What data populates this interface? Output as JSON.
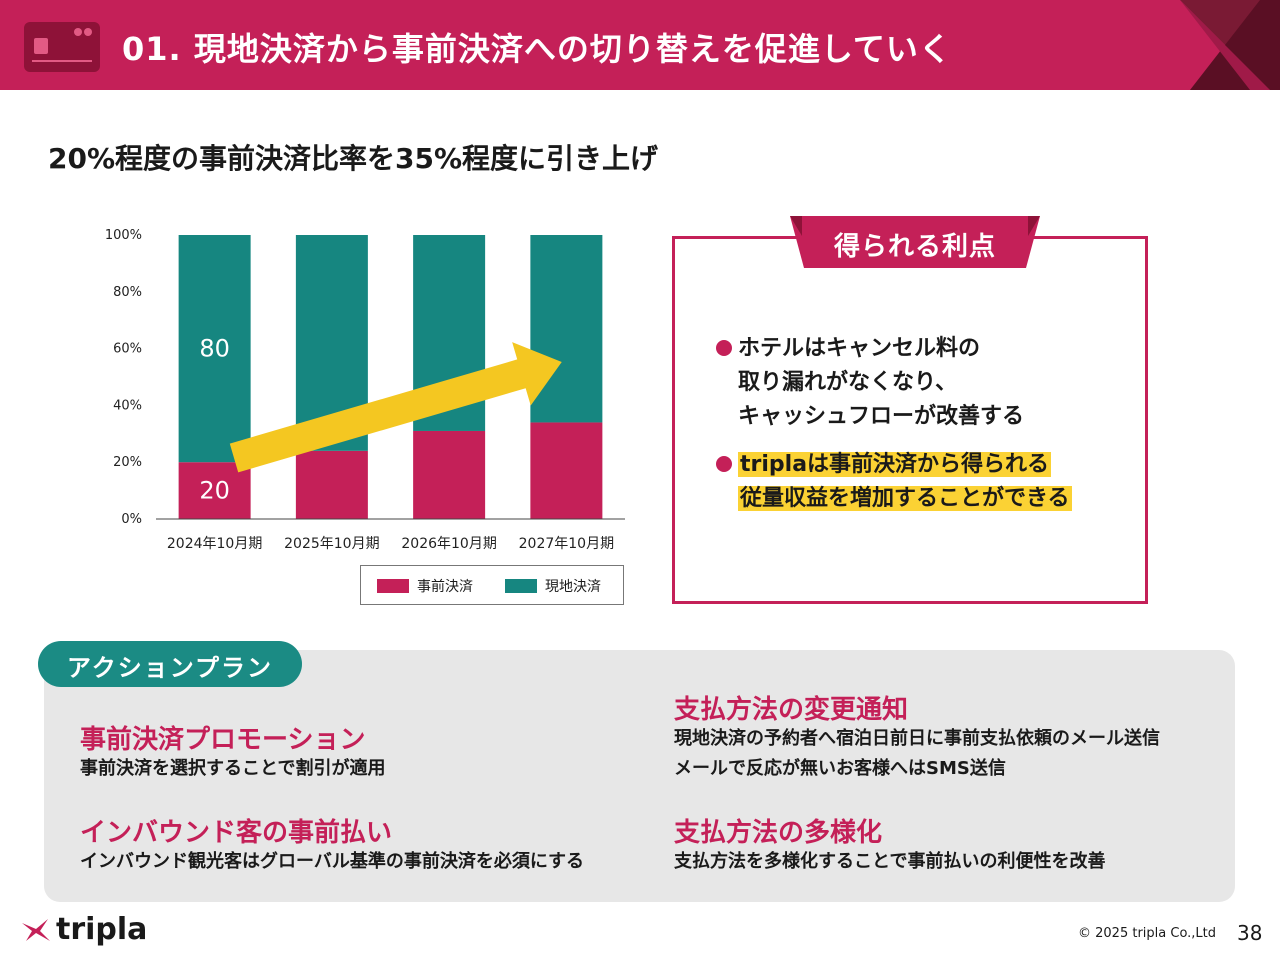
{
  "header": {
    "title": "01. 現地決済から事前決済への切り替えを促進していく",
    "color": "#c42058"
  },
  "subtitle": "20%程度の事前決済比率を35%程度に引き上げ",
  "chart_data": {
    "type": "bar",
    "stacked": true,
    "categories": [
      "2024年10月期",
      "2025年10月期",
      "2026年10月期",
      "2027年10月期"
    ],
    "series": [
      {
        "name": "事前決済",
        "color": "#c42058",
        "values": [
          20,
          24,
          31,
          34
        ]
      },
      {
        "name": "現地決済",
        "color": "#168680",
        "values": [
          80,
          76,
          69,
          66
        ]
      }
    ],
    "data_labels": [
      "80",
      "20"
    ],
    "ylim": [
      0,
      100
    ],
    "yticks": [
      "0%",
      "20%",
      "40%",
      "60%",
      "80%",
      "100%"
    ],
    "legend": "bottom",
    "arrow_color": "#f4c721"
  },
  "benefits": {
    "label": "得られる利点",
    "items": [
      {
        "lines": [
          "ホテルはキャンセル料の",
          "取り漏れがなくなり、",
          "キャッシュフローが改善する"
        ]
      },
      {
        "lines": [
          "triplaは事前決済から得られる",
          "従量収益を増加することができる"
        ],
        "highlight": true
      }
    ]
  },
  "action_plan": {
    "label": "アクションプラン",
    "items": [
      {
        "title": "事前決済プロモーション",
        "desc": [
          "事前決済を選択することで割引が適用"
        ]
      },
      {
        "title": "インバウンド客の事前払い",
        "desc": [
          "インバウンド観光客はグローバル基準の事前決済を必須にする"
        ]
      },
      {
        "title": "支払方法の変更通知",
        "desc": [
          "現地決済の予約者へ宿泊日前日に事前支払依頼のメール送信",
          "メールで反応が無いお客様へはSMS送信"
        ]
      },
      {
        "title": "支払方法の多様化",
        "desc": [
          "支払方法を多様化することで事前払いの利便性を改善"
        ]
      }
    ]
  },
  "footer": {
    "logo": "tripla",
    "logo_icon": "bird-icon",
    "copyright": "© 2025 tripla Co.,Ltd",
    "page": "38"
  }
}
